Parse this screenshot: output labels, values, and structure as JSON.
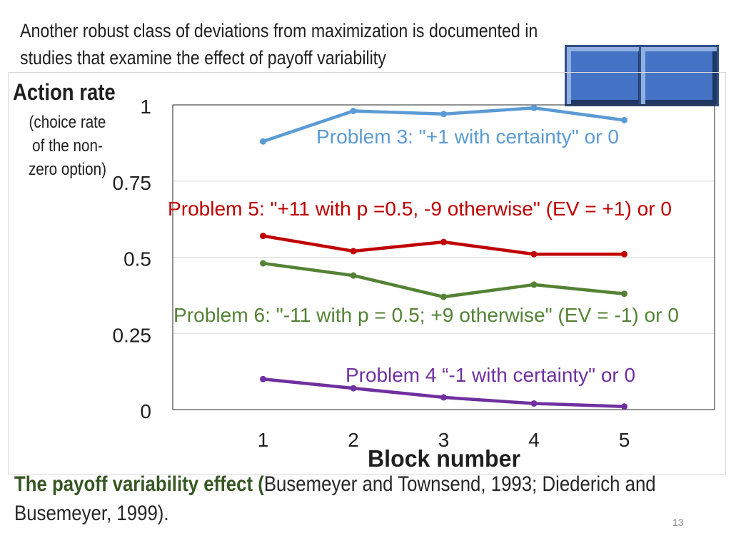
{
  "header": {
    "text": "Another robust class of deviations from maximization is documented in studies that examine the effect of payoff variability"
  },
  "y_axis": {
    "title": "Action rate",
    "subtitle": "(choice rate of the non-zero option)"
  },
  "chart_data": {
    "type": "line",
    "xlabel": "Block number",
    "x": [
      1,
      2,
      3,
      4,
      5
    ],
    "xlim": [
      0,
      6
    ],
    "ylim": [
      0,
      1
    ],
    "yticks": [
      0,
      0.25,
      0.5,
      0.75,
      1
    ],
    "ytick_labels": [
      "0",
      "0.25",
      "0.5",
      "0.75",
      "1"
    ],
    "grid": true,
    "series": [
      {
        "name": "Problem 3: \"+1 with certainty\" or 0",
        "color": "#5b9bd5",
        "values": [
          0.88,
          0.98,
          0.97,
          0.99,
          0.95
        ]
      },
      {
        "name": "Problem 5: \"+11 with p =0.5, -9 otherwise\" (EV = +1) or 0",
        "color": "#c00000",
        "values": [
          0.57,
          0.52,
          0.55,
          0.51,
          0.51
        ]
      },
      {
        "name": "Problem 6: \"-11 with p = 0.5; +9 otherwise\" (EV = -1) or 0",
        "color": "#548235",
        "values": [
          0.48,
          0.44,
          0.37,
          0.41,
          0.38
        ]
      },
      {
        "name": "Problem 4 “-1 with certainty\" or 0",
        "color": "#7030a0",
        "values": [
          0.1,
          0.07,
          0.04,
          0.02,
          0.01
        ]
      }
    ]
  },
  "footer": {
    "emphasis": "The payoff variability effect (",
    "citation": "Busemeyer and Townsend, 1993; Diederich and Busemeyer, 1999)."
  },
  "slide_number": "13"
}
